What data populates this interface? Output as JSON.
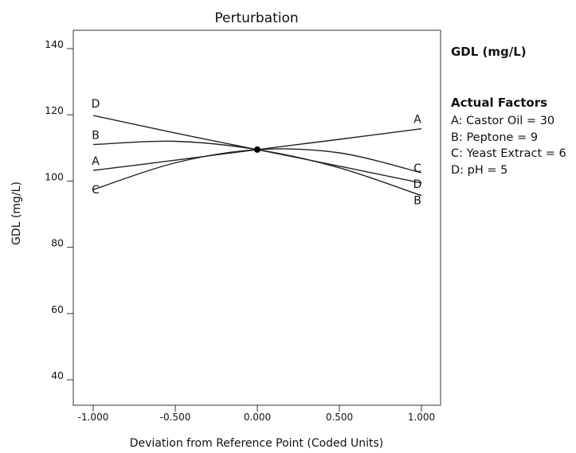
{
  "chart_data": {
    "type": "line",
    "title": "Perturbation",
    "xlabel": "Deviation from Reference Point (Coded Units)",
    "ylabel": "GDL (mg/L)",
    "xlim": [
      -1,
      1
    ],
    "ylim": [
      35,
      145
    ],
    "xticks": [
      -1,
      -0.5,
      0,
      0.5,
      1
    ],
    "xtick_labels": [
      "-1.000",
      "-0.500",
      "0.000",
      "0.500",
      "1.000"
    ],
    "yticks": [
      40,
      60,
      80,
      100,
      120,
      140
    ],
    "ytick_labels": [
      "40",
      "60",
      "80",
      "100",
      "120",
      "140"
    ],
    "grid": false,
    "reference_point": {
      "x": 0,
      "y": 109.5
    },
    "series": [
      {
        "name": "A",
        "x": [
          -1,
          -0.5,
          0,
          0.5,
          1
        ],
        "values": [
          103.2,
          106.3,
          109.5,
          112.6,
          115.8
        ]
      },
      {
        "name": "B",
        "x": [
          -1,
          -0.5,
          0,
          0.5,
          1
        ],
        "values": [
          111.0,
          112.0,
          109.5,
          104.0,
          95.6
        ]
      },
      {
        "name": "C",
        "x": [
          -1,
          -0.5,
          0,
          0.5,
          1
        ],
        "values": [
          97.4,
          105.5,
          109.5,
          108.5,
          102.5
        ]
      },
      {
        "name": "D",
        "x": [
          -1,
          -0.5,
          0,
          0.5,
          1
        ],
        "values": [
          119.8,
          114.5,
          109.5,
          104.5,
          99.4
        ]
      }
    ]
  },
  "legend_title": "GDL (mg/L)",
  "factors_title": "Actual Factors",
  "factors": [
    "A: Castor Oil = 30",
    "B: Peptone = 9",
    "C: Yeast Extract = 6",
    "D: pH = 5"
  ]
}
